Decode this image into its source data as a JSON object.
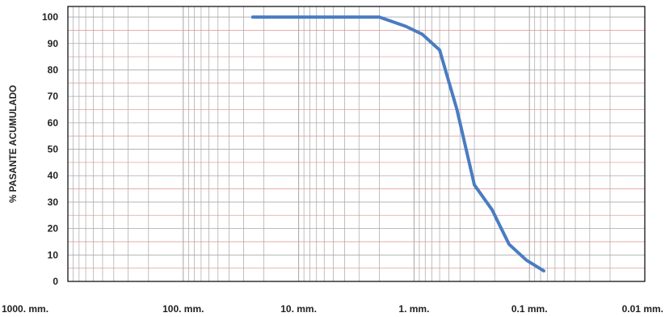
{
  "chart_data": {
    "type": "line",
    "title": "",
    "xlabel": "",
    "ylabel": "% PASANTE ACUMULADO",
    "x_scale": "log",
    "x_reversed": true,
    "xlim": [
      1000,
      0.01
    ],
    "ylim": [
      0,
      104
    ],
    "x_tick_values": [
      1000,
      100,
      10,
      1,
      0.1,
      0.01
    ],
    "x_tick_labels": [
      "1000. mm.",
      "100. mm.",
      "10. mm.",
      "1. mm.",
      "0.1 mm.",
      "0.01 mm."
    ],
    "y_tick_values": [
      0,
      10,
      20,
      30,
      40,
      50,
      60,
      70,
      80,
      90,
      100
    ],
    "y_tick_labels": [
      "0",
      "10",
      "20",
      "30",
      "40",
      "50",
      "60",
      "70",
      "80",
      "90",
      "100"
    ],
    "grid": {
      "x_minor": true,
      "y_major": true,
      "y_minor": true
    },
    "series": [
      {
        "x": [
          25,
          2,
          1.18,
          0.85,
          0.6,
          0.425,
          0.3,
          0.21,
          0.18,
          0.15,
          0.106,
          0.075
        ],
        "y": [
          100,
          100,
          96.5,
          93.5,
          87.5,
          65,
          36.5,
          27,
          21,
          14,
          8,
          4
        ]
      }
    ],
    "colors": {
      "line": "#4a7cc1",
      "grid_vertical": "#a6a6a6",
      "grid_horizontal_major": "#aaaaaa",
      "grid_horizontal_minor": "#e4a1a1",
      "frame": "#000000"
    }
  }
}
